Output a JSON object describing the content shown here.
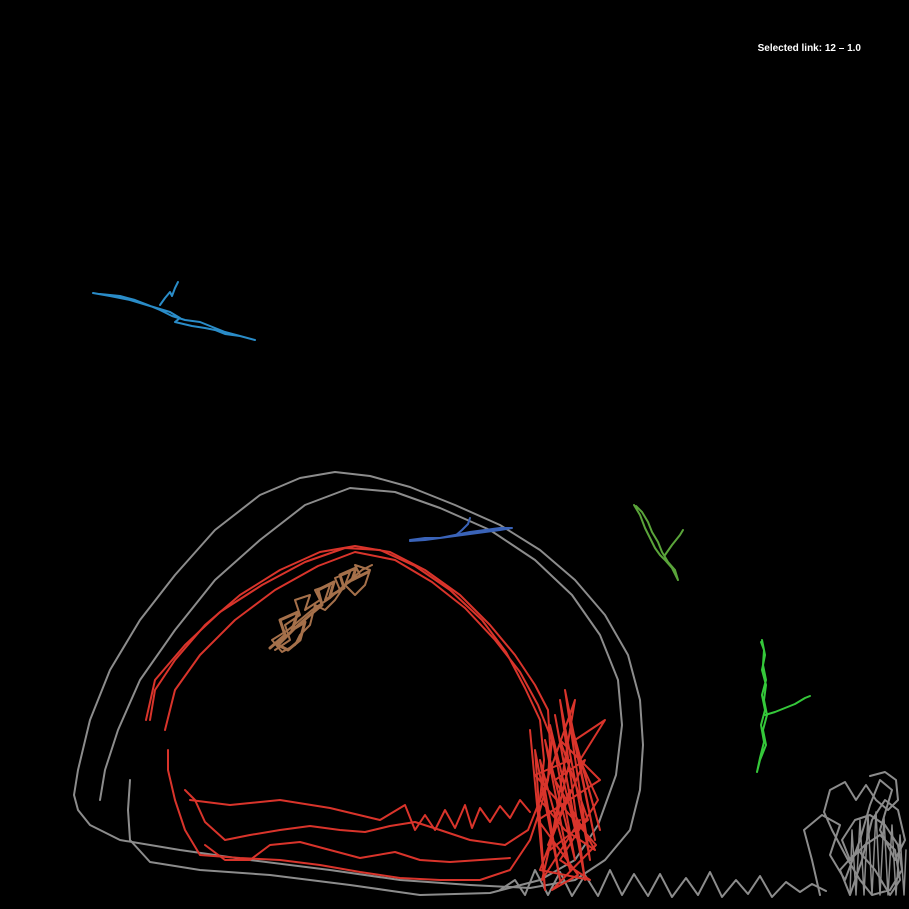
{
  "status": {
    "prefix": "Selected link:",
    "link_id": "12",
    "separator": "–",
    "value": "1.0",
    "text": "Selected link: 12 – 1.0"
  },
  "colors": {
    "background": "#000000",
    "text": "#ffffff",
    "grey_trace": "#8c8c8c",
    "red_trace": "#d9342b",
    "brown_trace": "#a5704a",
    "light_blue_trace": "#2a8cc8",
    "dark_blue_trace": "#3a63b8",
    "olive_green_trace": "#5aa43a",
    "bright_green_trace": "#35c83a"
  },
  "traces": [
    {
      "name": "grey-loop-trace",
      "color_key": "grey_trace"
    },
    {
      "name": "red-loop-trace",
      "color_key": "red_trace"
    },
    {
      "name": "brown-cluster-trace",
      "color_key": "brown_trace"
    },
    {
      "name": "light-blue-trace",
      "color_key": "light_blue_trace"
    },
    {
      "name": "dark-blue-trace",
      "color_key": "dark_blue_trace"
    },
    {
      "name": "olive-green-trace",
      "color_key": "olive_green_trace"
    },
    {
      "name": "bright-green-trace",
      "color_key": "bright_green_trace"
    }
  ]
}
